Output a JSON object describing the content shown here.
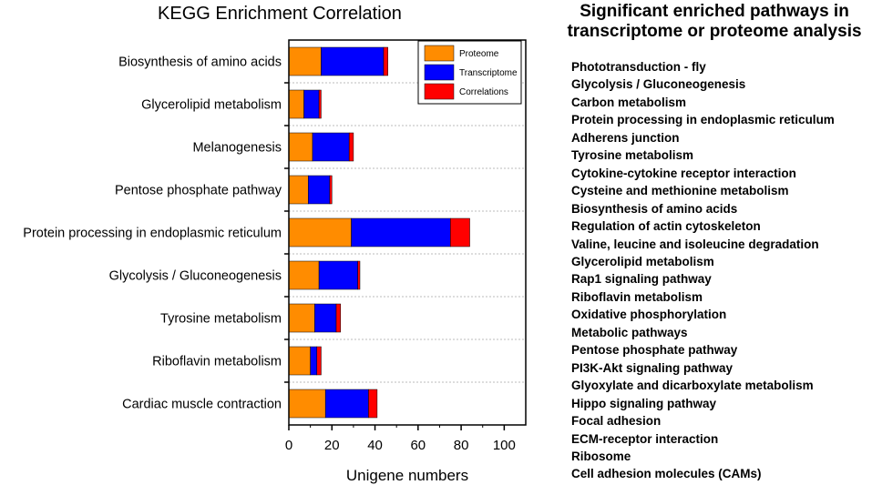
{
  "chart_data": {
    "type": "bar",
    "orientation": "horizontal",
    "stacked": true,
    "title": "KEGG Enrichment Correlation",
    "xlabel": "Unigene numbers",
    "ylabel": "",
    "xlim": [
      0,
      110
    ],
    "xticks": [
      "0",
      "20",
      "40",
      "60",
      "80",
      "100"
    ],
    "categories": [
      "Biosynthesis of amino acids",
      "Glycerolipid metabolism",
      "Melanogenesis",
      "Pentose phosphate pathway",
      "Protein processing in endoplasmic reticulum",
      "Glycolysis / Gluconeogenesis",
      "Tyrosine metabolism",
      "Riboflavin metabolism",
      "Cardiac muscle contraction"
    ],
    "series": [
      {
        "name": "Proteome",
        "color": "#ff8c00",
        "values": [
          15,
          7,
          11,
          9,
          29,
          14,
          12,
          10,
          17
        ]
      },
      {
        "name": "Transcriptome",
        "color": "#0000ff",
        "values": [
          29,
          7,
          17,
          10,
          46,
          18,
          10,
          3,
          20
        ]
      },
      {
        "name": "Correlations",
        "color": "#ff0000",
        "values": [
          2,
          1,
          2,
          1,
          9,
          1,
          2,
          2,
          4
        ]
      }
    ],
    "legend_position": "top-right",
    "grid": "dotted row separators"
  },
  "side_panel": {
    "title": "Significant enriched pathways in transcriptome or proteome analysis",
    "items": [
      "Phototransduction - fly",
      "Glycolysis / Gluconeogenesis",
      "Carbon metabolism",
      "Protein processing in endoplasmic reticulum",
      "Adherens junction",
      "Tyrosine metabolism",
      "Cytokine-cytokine receptor interaction",
      "Cysteine and methionine metabolism",
      "Biosynthesis of amino acids",
      "Regulation of actin cytoskeleton",
      "Valine, leucine and isoleucine degradation",
      "Glycerolipid metabolism",
      "Rap1 signaling pathway",
      "Riboflavin metabolism",
      "Oxidative phosphorylation",
      "Metabolic pathways",
      "Pentose phosphate pathway",
      "PI3K-Akt signaling pathway",
      "Glyoxylate and dicarboxylate metabolism",
      "Hippo signaling pathway",
      "Focal adhesion",
      "ECM-receptor interaction",
      "Ribosome",
      "Cell adhesion molecules (CAMs)"
    ]
  }
}
